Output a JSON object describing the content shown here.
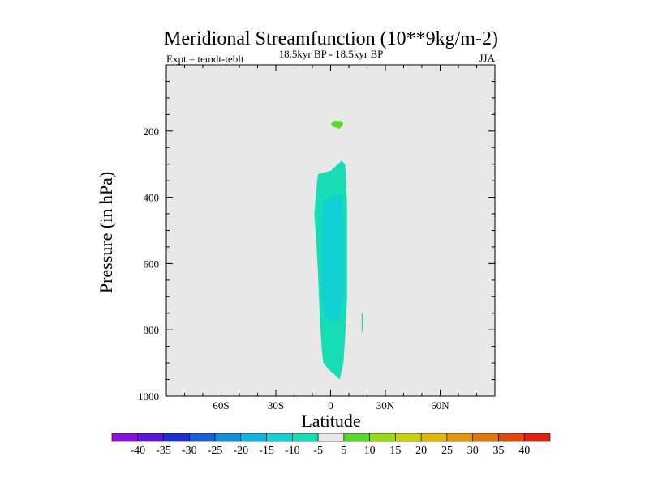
{
  "chart_data": {
    "type": "contour",
    "title": "Meridional Streamfunction (10**9kg/m-2)",
    "subtitle": "18.5kyr BP - 18.5kyr BP",
    "left_annotation": "Expt = temdt-teblt",
    "right_annotation": "JJA",
    "xlabel": "Latitude",
    "ylabel": "Pressure (in hPa)",
    "xlim": [
      -90,
      90
    ],
    "ylim": [
      1000,
      0
    ],
    "x_ticks": [
      {
        "value": -60,
        "label": "60S"
      },
      {
        "value": -30,
        "label": "30S"
      },
      {
        "value": 0,
        "label": "0"
      },
      {
        "value": 30,
        "label": "30N"
      },
      {
        "value": 60,
        "label": "60N"
      }
    ],
    "y_ticks": [
      {
        "value": 200,
        "label": "200"
      },
      {
        "value": 400,
        "label": "400"
      },
      {
        "value": 600,
        "label": "600"
      },
      {
        "value": 800,
        "label": "800"
      },
      {
        "value": 1000,
        "label": "1000"
      }
    ],
    "y_minor_ticks": [
      50,
      100,
      150,
      250,
      300,
      350,
      450,
      500,
      550,
      650,
      700,
      750,
      850,
      900,
      950
    ],
    "x_minor_ticks": [
      -90,
      -80,
      -70,
      -50,
      -40,
      -20,
      -10,
      10,
      20,
      40,
      50,
      70,
      80,
      90
    ],
    "background_color": "#e8e8e8",
    "colorbar": {
      "levels": [
        -40,
        -35,
        -30,
        -25,
        -20,
        -15,
        -10,
        -5,
        5,
        10,
        15,
        20,
        25,
        30,
        35,
        40
      ],
      "labels": [
        "-40",
        "-35",
        "-30",
        "-25",
        "-20",
        "-15",
        "-10",
        "-5",
        "5",
        "10",
        "15",
        "20",
        "25",
        "30",
        "35",
        "40"
      ],
      "colors": [
        "#8a10e0",
        "#5a16d8",
        "#2030d0",
        "#1660d8",
        "#1090d8",
        "#10b4dc",
        "#10d0d4",
        "#18dcb4",
        "#e8e8e8",
        "#58d828",
        "#98d818",
        "#c8d010",
        "#e0b808",
        "#e09808",
        "#e07808",
        "#e04808",
        "#e02010"
      ]
    },
    "regions": [
      {
        "name": "negative-cell-outer",
        "level": "-10 to -5",
        "color": "#18dcb4",
        "points": [
          [
            -9,
            450
          ],
          [
            -7,
            330
          ],
          [
            0,
            320
          ],
          [
            6,
            290
          ],
          [
            8,
            300
          ],
          [
            9,
            420
          ],
          [
            9,
            560
          ],
          [
            9,
            700
          ],
          [
            8,
            820
          ],
          [
            7,
            900
          ],
          [
            5,
            950
          ],
          [
            3,
            940
          ],
          [
            -1,
            920
          ],
          [
            -4,
            900
          ],
          [
            -5,
            850
          ],
          [
            -6,
            750
          ],
          [
            -7,
            620
          ],
          [
            -8,
            520
          ]
        ]
      },
      {
        "name": "negative-cell-inner",
        "level": "-15 to -10",
        "color": "#10d0d4",
        "points": [
          [
            -5,
            480
          ],
          [
            -4,
            410
          ],
          [
            0,
            400
          ],
          [
            6,
            390
          ],
          [
            7,
            460
          ],
          [
            7,
            600
          ],
          [
            7,
            700
          ],
          [
            5,
            760
          ],
          [
            2,
            780
          ],
          [
            -3,
            760
          ],
          [
            -5,
            690
          ],
          [
            -5,
            580
          ]
        ]
      },
      {
        "name": "positive-blob-upper",
        "level": "5 to 10",
        "color": "#58d828",
        "points": [
          [
            0,
            178
          ],
          [
            2,
            169
          ],
          [
            6,
            170
          ],
          [
            7,
            178
          ],
          [
            5,
            193
          ],
          [
            2,
            188
          ]
        ]
      },
      {
        "name": "negative-sliver",
        "level": "-10 to -5",
        "color": "#18dcb4",
        "points": [
          [
            17,
            750
          ],
          [
            17.6,
            750
          ],
          [
            17.6,
            800
          ],
          [
            17,
            810
          ]
        ]
      }
    ]
  }
}
